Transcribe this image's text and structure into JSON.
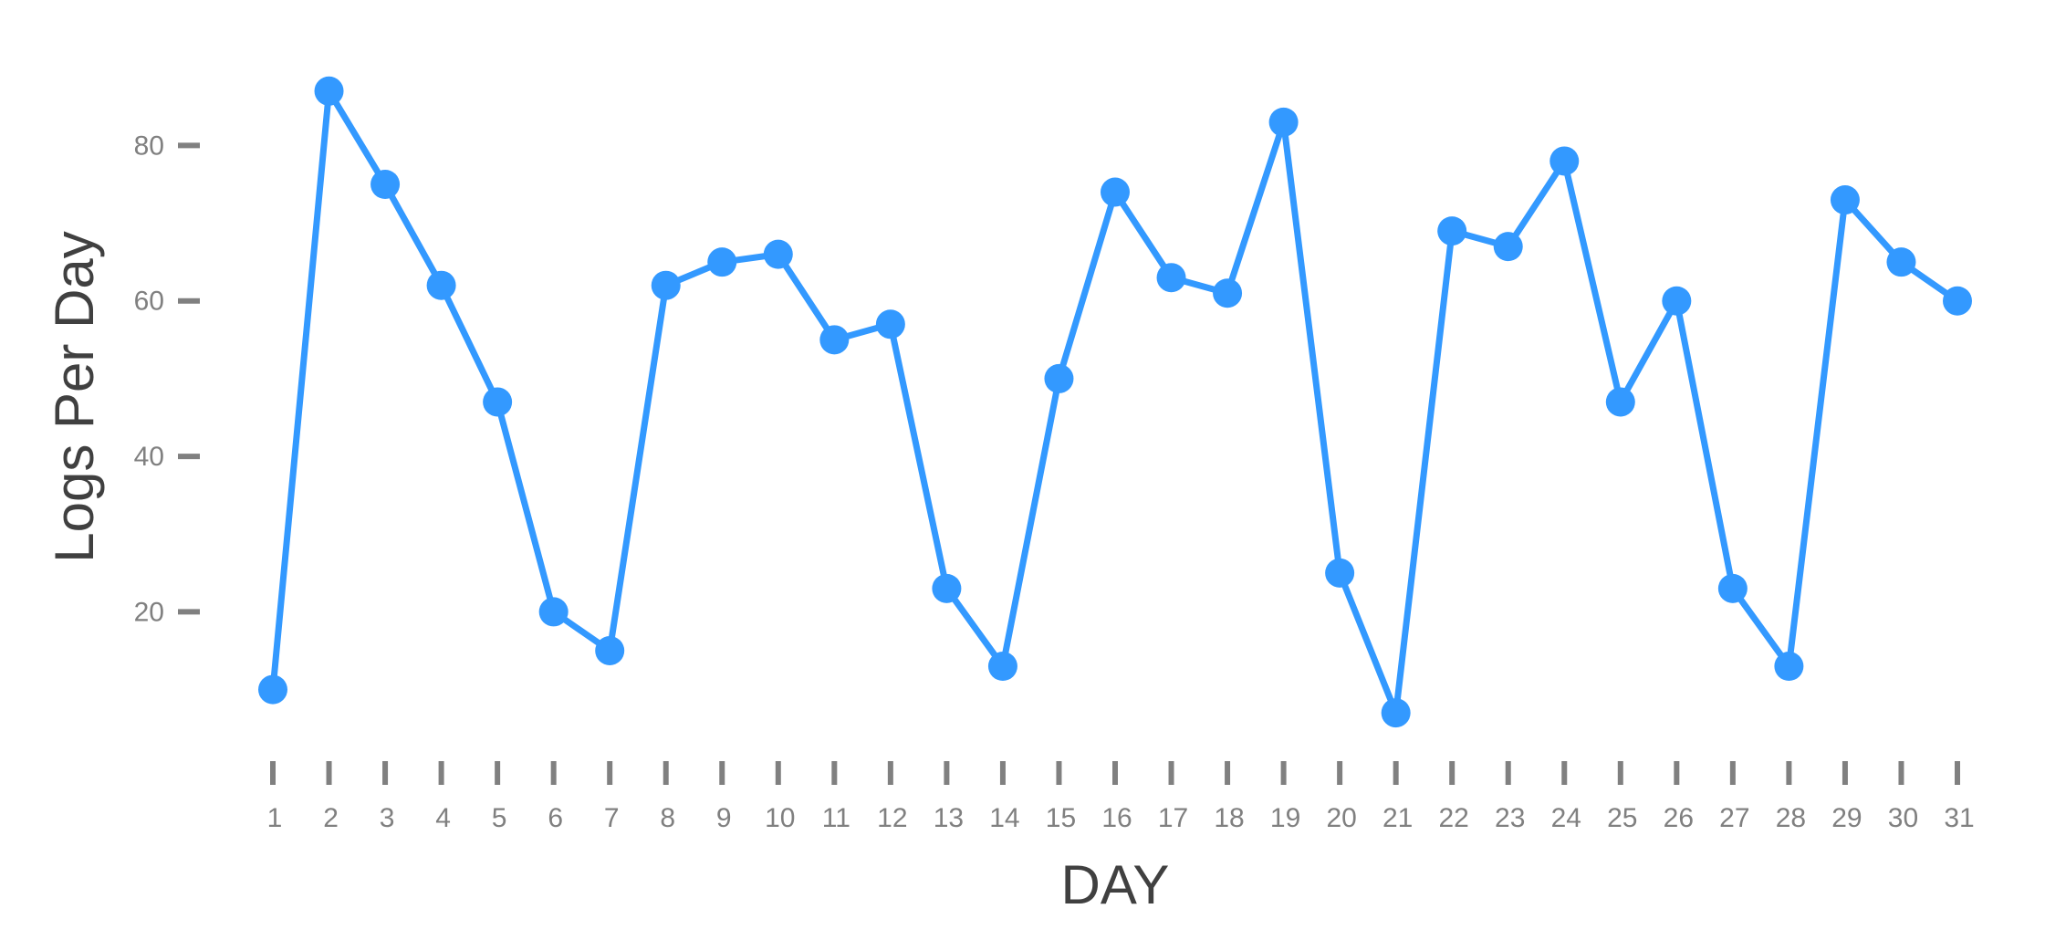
{
  "chart_data": {
    "type": "line",
    "title": "",
    "xlabel": "DAY",
    "ylabel": "Logs Per Day",
    "x": [
      1,
      2,
      3,
      4,
      5,
      6,
      7,
      8,
      9,
      10,
      11,
      12,
      13,
      14,
      15,
      16,
      17,
      18,
      19,
      20,
      21,
      22,
      23,
      24,
      25,
      26,
      27,
      28,
      29,
      30,
      31
    ],
    "series": [
      {
        "values": [
          10,
          87,
          75,
          62,
          47,
          20,
          15,
          62,
          65,
          66,
          55,
          57,
          23,
          13,
          50,
          74,
          63,
          61,
          83,
          25,
          7,
          69,
          67,
          78,
          47,
          60,
          23,
          13,
          73,
          65,
          60
        ],
        "color": "#3399ff"
      }
    ],
    "ylim": [
      2.2,
      93.2
    ],
    "yticks": [
      20,
      40,
      60,
      80
    ],
    "xticks": [
      1,
      2,
      3,
      4,
      5,
      6,
      7,
      8,
      9,
      10,
      11,
      12,
      13,
      14,
      15,
      16,
      17,
      18,
      19,
      20,
      21,
      22,
      23,
      24,
      25,
      26,
      27,
      28,
      29,
      30,
      31
    ],
    "grid": false,
    "legend": "none"
  }
}
